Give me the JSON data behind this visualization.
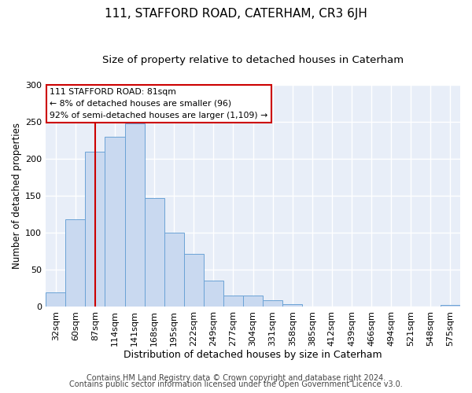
{
  "title": "111, STAFFORD ROAD, CATERHAM, CR3 6JH",
  "subtitle": "Size of property relative to detached houses in Caterham",
  "xlabel": "Distribution of detached houses by size in Caterham",
  "ylabel": "Number of detached properties",
  "bar_labels": [
    "32sqm",
    "60sqm",
    "87sqm",
    "114sqm",
    "141sqm",
    "168sqm",
    "195sqm",
    "222sqm",
    "249sqm",
    "277sqm",
    "304sqm",
    "331sqm",
    "358sqm",
    "385sqm",
    "412sqm",
    "439sqm",
    "466sqm",
    "494sqm",
    "521sqm",
    "548sqm",
    "575sqm"
  ],
  "bar_heights": [
    20,
    118,
    210,
    230,
    248,
    147,
    100,
    72,
    35,
    15,
    15,
    9,
    4,
    0,
    0,
    0,
    0,
    0,
    0,
    0,
    3
  ],
  "bar_color": "#c9d9f0",
  "bar_edge_color": "#6ba3d6",
  "vline_x": 2,
  "vline_color": "#cc0000",
  "annotation_title": "111 STAFFORD ROAD: 81sqm",
  "annotation_line1": "← 8% of detached houses are smaller (96)",
  "annotation_line2": "92% of semi-detached houses are larger (1,109) →",
  "annotation_box_color": "#ffffff",
  "annotation_box_edge": "#cc0000",
  "ylim": [
    0,
    300
  ],
  "yticks": [
    0,
    50,
    100,
    150,
    200,
    250,
    300
  ],
  "footer_line1": "Contains HM Land Registry data © Crown copyright and database right 2024.",
  "footer_line2": "Contains public sector information licensed under the Open Government Licence v3.0.",
  "bg_color": "#ffffff",
  "plot_bg_color": "#e8eef8",
  "grid_color": "#ffffff",
  "title_fontsize": 11,
  "subtitle_fontsize": 9.5,
  "xlabel_fontsize": 9,
  "ylabel_fontsize": 8.5,
  "tick_fontsize": 8,
  "footer_fontsize": 7
}
